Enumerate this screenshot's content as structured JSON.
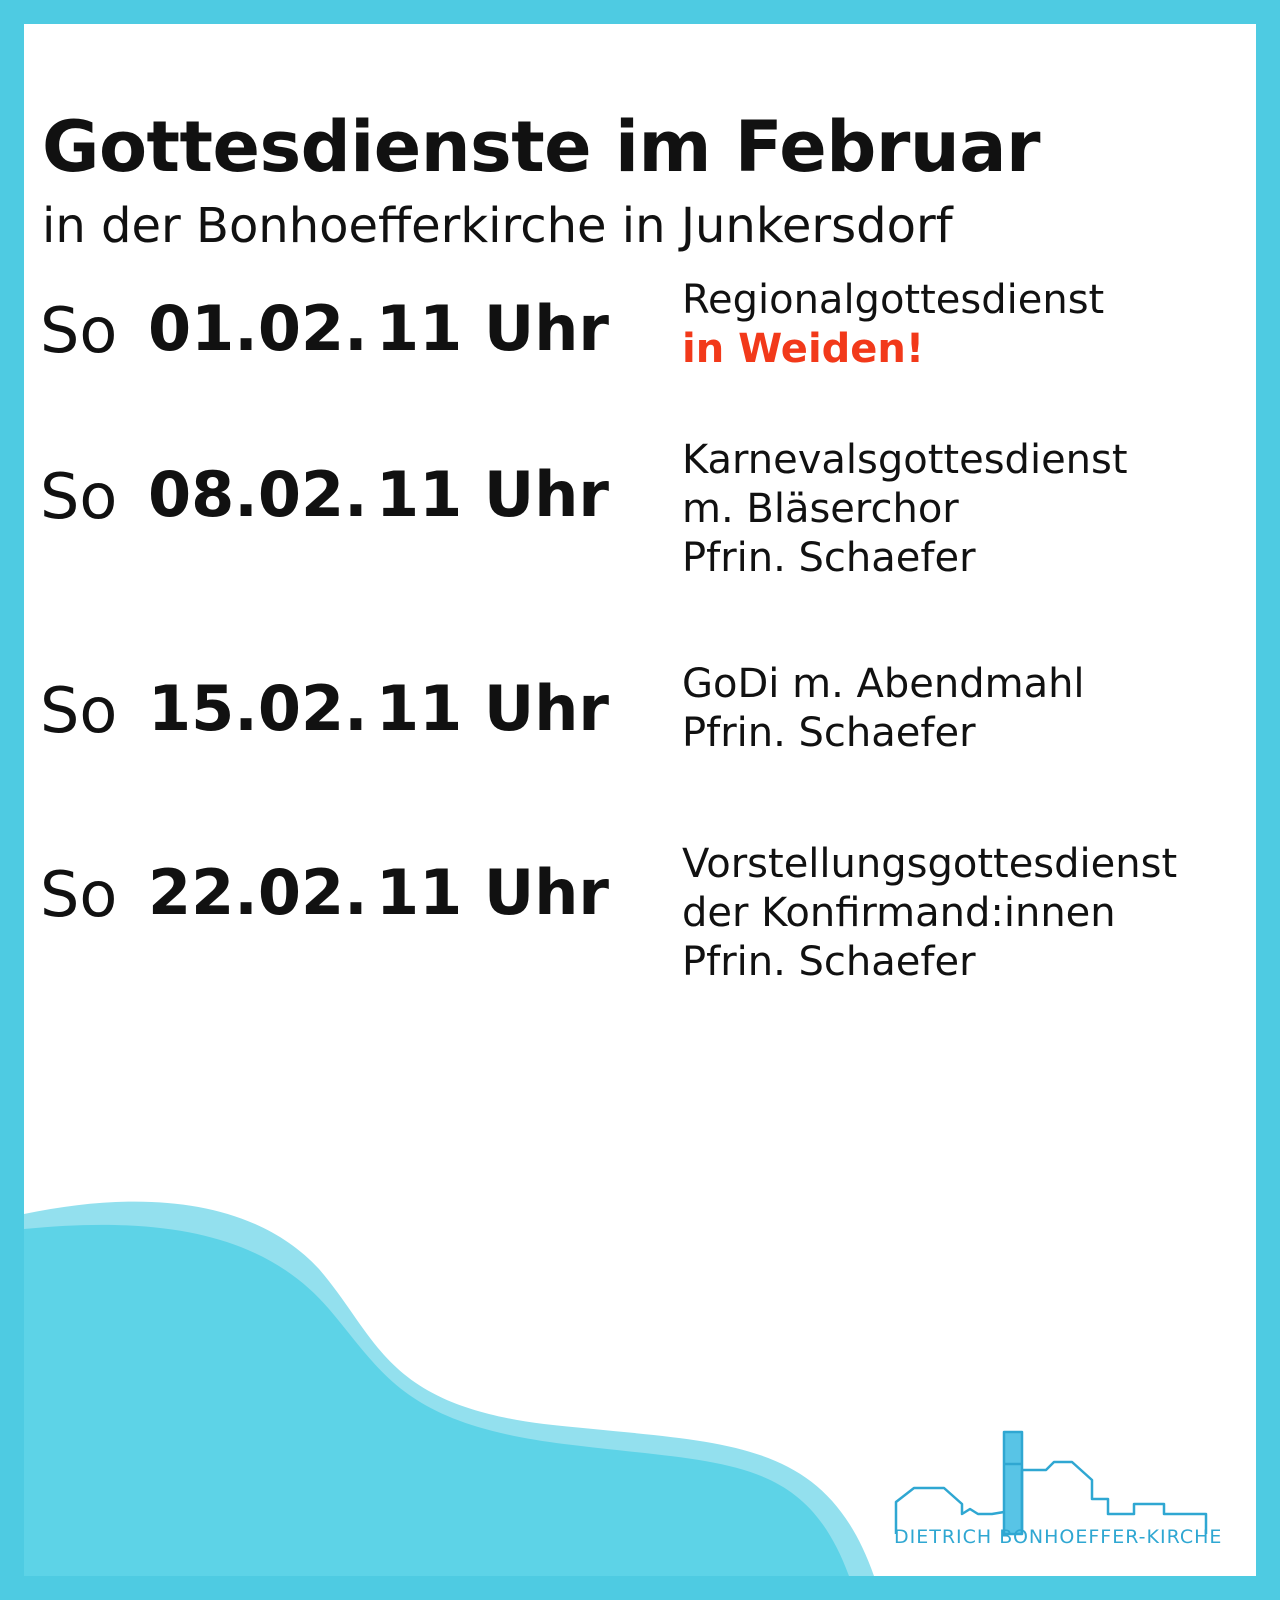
{
  "header": {
    "title": "Gottesdienste im Februar",
    "subtitle": "in der Bonhoefferkirche in Junkersdorf"
  },
  "events": [
    {
      "day": "So",
      "date": "01.02.",
      "time": "11 Uhr",
      "lines": [
        "Regionalgottesdienst"
      ],
      "highlight": "in Weiden!"
    },
    {
      "day": "So",
      "date": "08.02.",
      "time": "11 Uhr",
      "lines": [
        "Karnevalsgottesdienst",
        "m. Bläserchor",
        "Pfrin. Schaefer"
      ]
    },
    {
      "day": "So",
      "date": "15.02.",
      "time": "11 Uhr",
      "lines": [
        "GoDi m. Abendmahl",
        "Pfrin. Schaefer"
      ]
    },
    {
      "day": "So",
      "date": "22.02.",
      "time": "11 Uhr",
      "lines": [
        "Vorstellungsgottesdienst",
        "der Konfirmand:innen",
        "Pfrin. Schaefer"
      ]
    }
  ],
  "footer": {
    "logo_text": "DIETRICH BONHOEFFER-KIRCHE",
    "logo_icon": "church-building-icon"
  },
  "colors": {
    "frame": "#4ecbe2",
    "wave_light": "#93e0ee",
    "wave_dark": "#5dd3e7",
    "highlight": "#f2391a",
    "logo": "#2fa7d2"
  }
}
